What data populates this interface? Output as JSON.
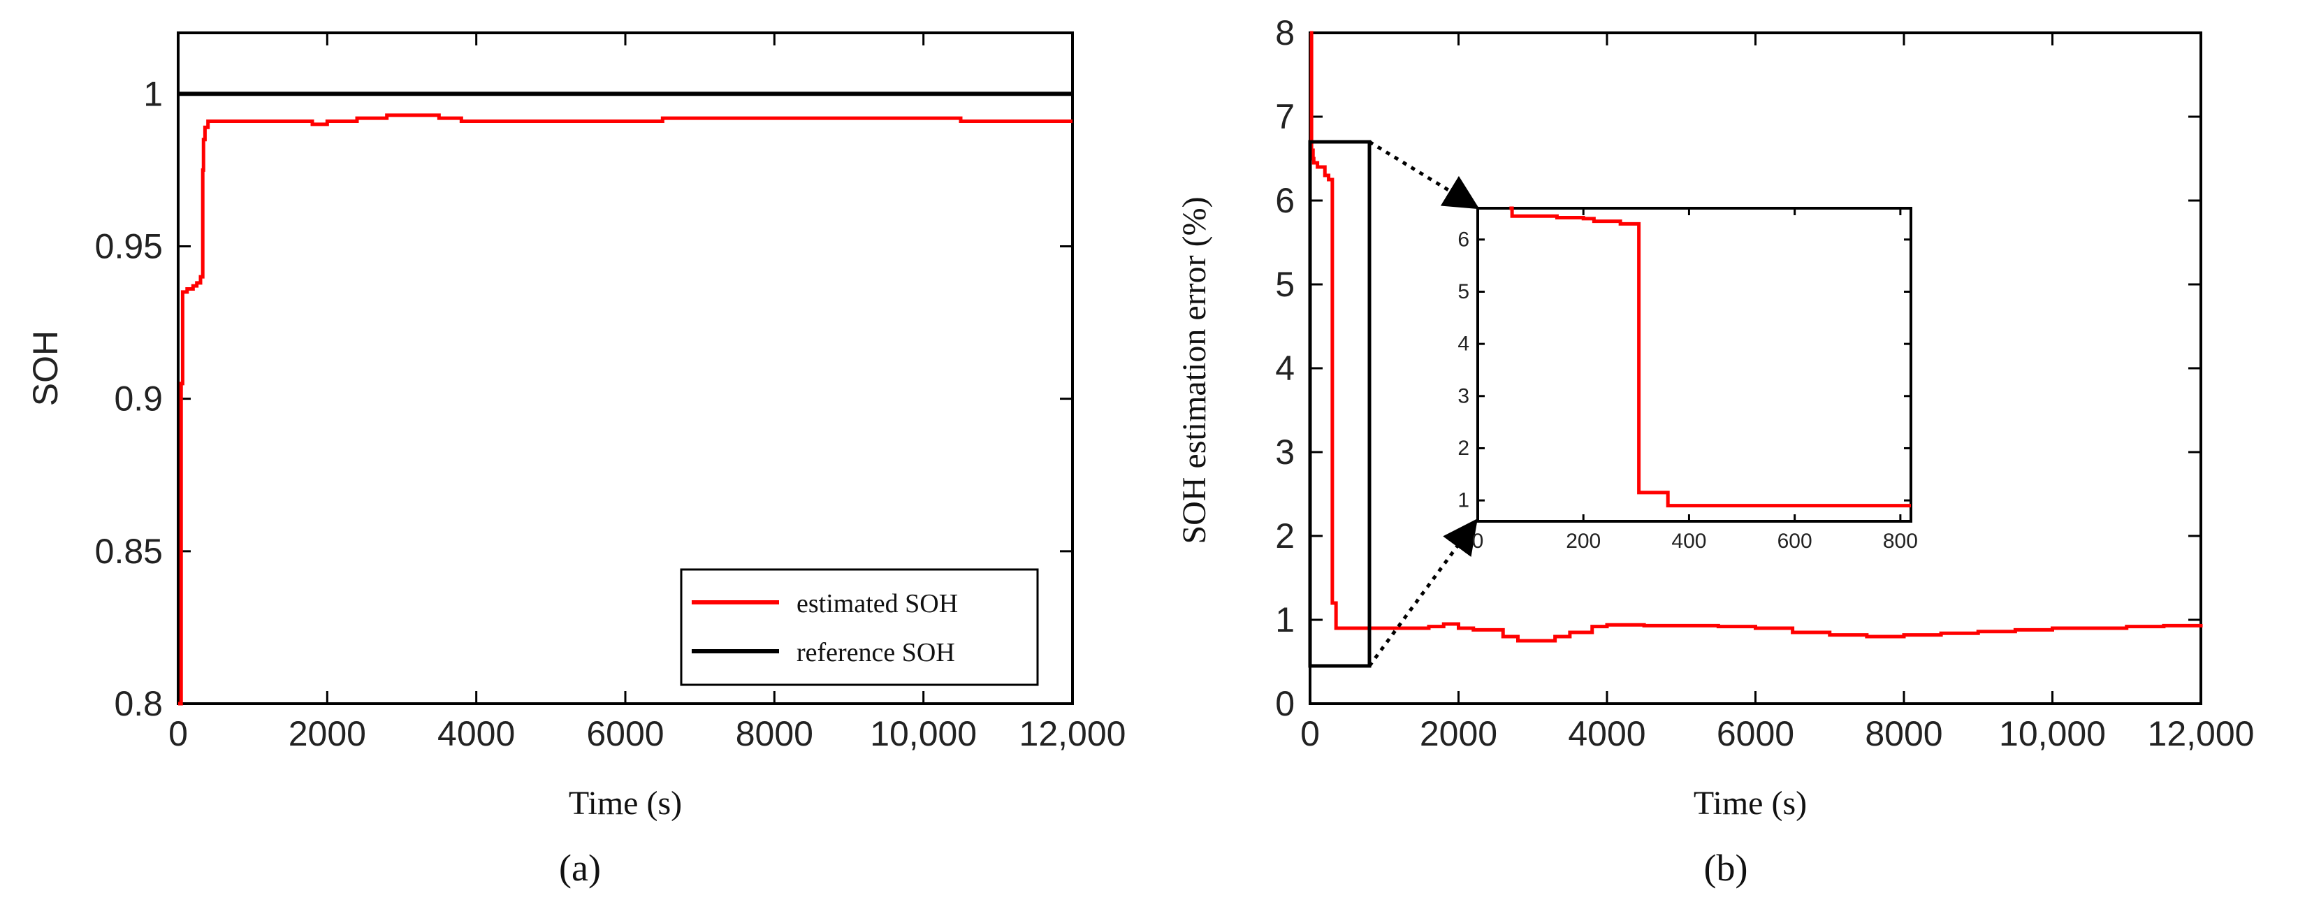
{
  "chart_data": [
    {
      "type": "line",
      "panel_label": "a",
      "title": "",
      "xlabel": "Time  (s)",
      "ylabel": "SOH",
      "xlim": [
        0,
        12000
      ],
      "ylim": [
        0.8,
        1.02
      ],
      "xticks": [
        0,
        2000,
        4000,
        6000,
        8000,
        10000,
        12000
      ],
      "xtick_labels": [
        "0",
        "2000",
        "4000",
        "6000",
        "8000",
        "10,000",
        "12,000"
      ],
      "yticks": [
        0.8,
        0.85,
        0.9,
        0.95,
        1.0
      ],
      "ytick_labels": [
        "0.8",
        "0.85",
        "0.9",
        "0.95",
        "1"
      ],
      "legend_position": "bottom-right",
      "series": [
        {
          "name": "estimated SOH",
          "color": "#ff0000",
          "x": [
            0,
            10,
            40,
            60,
            100,
            120,
            200,
            250,
            300,
            330,
            340,
            360,
            400,
            600,
            1000,
            1500,
            1800,
            2000,
            2400,
            2800,
            3200,
            3500,
            3800,
            4500,
            5500,
            6500,
            7500,
            8500,
            9500,
            10500,
            11500,
            12000
          ],
          "y": [
            0.8,
            0.8,
            0.905,
            0.935,
            0.935,
            0.936,
            0.937,
            0.938,
            0.94,
            0.975,
            0.985,
            0.989,
            0.991,
            0.991,
            0.991,
            0.991,
            0.99,
            0.991,
            0.992,
            0.993,
            0.993,
            0.992,
            0.991,
            0.991,
            0.991,
            0.992,
            0.992,
            0.992,
            0.992,
            0.991,
            0.991,
            0.991
          ]
        },
        {
          "name": "reference SOH",
          "color": "#000000",
          "x": [
            0,
            12000
          ],
          "y": [
            1.0,
            1.0
          ]
        }
      ]
    },
    {
      "type": "line",
      "panel_label": "b",
      "title": "",
      "xlabel": "Time  (s)",
      "ylabel": "SOH estimation error    (%)",
      "xlim": [
        0,
        12000
      ],
      "ylim": [
        0,
        8
      ],
      "xticks": [
        0,
        2000,
        4000,
        6000,
        8000,
        10000,
        12000
      ],
      "xtick_labels": [
        "0",
        "2000",
        "4000",
        "6000",
        "8000",
        "10,000",
        "12,000"
      ],
      "yticks": [
        0,
        1,
        2,
        3,
        4,
        5,
        6,
        7,
        8
      ],
      "ytick_labels": [
        "0",
        "1",
        "2",
        "3",
        "4",
        "5",
        "6",
        "7",
        "8"
      ],
      "series": [
        {
          "name": "SOH estimation error",
          "color": "#ff0000",
          "x": [
            0,
            20,
            40,
            50,
            60,
            100,
            150,
            200,
            220,
            250,
            300,
            320,
            350,
            500,
            800,
            1200,
            1600,
            1800,
            2000,
            2200,
            2600,
            2800,
            3100,
            3300,
            3500,
            3800,
            4000,
            4500,
            5000,
            5500,
            6000,
            6500,
            7000,
            7500,
            8000,
            8500,
            9000,
            9500,
            10000,
            10500,
            11000,
            11500,
            12000
          ],
          "y": [
            8,
            6.6,
            6.5,
            6.45,
            6.45,
            6.4,
            6.4,
            6.3,
            6.3,
            6.25,
            1.2,
            1.2,
            0.9,
            0.9,
            0.9,
            0.9,
            0.92,
            0.95,
            0.9,
            0.88,
            0.8,
            0.75,
            0.75,
            0.8,
            0.85,
            0.92,
            0.94,
            0.93,
            0.93,
            0.92,
            0.9,
            0.85,
            0.82,
            0.8,
            0.82,
            0.84,
            0.86,
            0.88,
            0.9,
            0.9,
            0.92,
            0.93,
            0.95
          ]
        }
      ],
      "zoom_box": {
        "x_range": [
          0,
          800
        ],
        "y_range": [
          0.45,
          6.7
        ]
      },
      "inset": {
        "xlim": [
          0,
          820
        ],
        "ylim": [
          0.6,
          6.6
        ],
        "xticks": [
          0,
          200,
          400,
          600,
          800
        ],
        "xtick_labels": [
          "0",
          "200",
          "400",
          "600",
          "800"
        ],
        "yticks": [
          1,
          2,
          3,
          4,
          5,
          6
        ],
        "ytick_labels": [
          "1",
          "2",
          "3",
          "4",
          "5",
          "6"
        ],
        "series": [
          {
            "name": "SOH estimation error (zoom)",
            "color": "#ff0000",
            "x": [
              60,
              65,
              100,
              150,
              200,
              220,
              250,
              270,
              300,
              305,
              350,
              360,
              400,
              500,
              600,
              700,
              820
            ],
            "y": [
              6.6,
              6.45,
              6.45,
              6.42,
              6.4,
              6.35,
              6.35,
              6.3,
              6.3,
              1.15,
              1.15,
              0.9,
              0.9,
              0.9,
              0.9,
              0.9,
              0.9
            ]
          }
        ]
      }
    }
  ],
  "legend": {
    "entries": [
      "estimated SOH",
      "reference SOH"
    ],
    "colors": [
      "#ff0000",
      "#000000"
    ]
  },
  "panel_labels": [
    "(a)",
    "(b)"
  ]
}
